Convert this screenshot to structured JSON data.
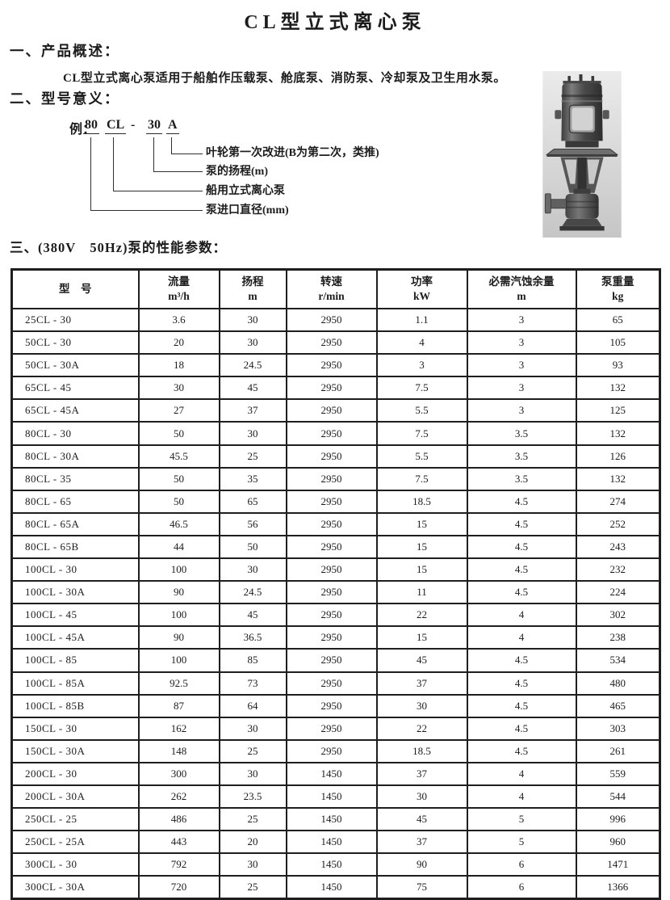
{
  "doc": {
    "title": "CL型立式离心泵",
    "section1": {
      "heading": "一、产品概述：",
      "body": "CL型立式离心泵适用于船舶作压载泵、舱底泵、消防泵、冷却泵及卫生用水泵。"
    },
    "section2": {
      "heading": "二、型号意义："
    },
    "section3": {
      "heading": "三、(380V　50Hz)泵的性能参数："
    }
  },
  "diagram": {
    "prefix": "例：",
    "tokens": [
      "80",
      "CL",
      "-",
      "30",
      "A"
    ],
    "labels": [
      "叶轮第一次改进(B为第二次，类推)",
      "泵的扬程(m)",
      "船用立式离心泵",
      "泵进口直径(mm)"
    ]
  },
  "pump_photo": {
    "alt": "CL型立式离心泵外形照片"
  },
  "table": {
    "columns": [
      {
        "key": "model",
        "name": "型　号",
        "unit": ""
      },
      {
        "key": "flow",
        "name": "流量",
        "unit": "m³/h"
      },
      {
        "key": "head",
        "name": "扬程",
        "unit": "m"
      },
      {
        "key": "speed",
        "name": "转速",
        "unit": "r/min"
      },
      {
        "key": "power",
        "name": "功率",
        "unit": "kW"
      },
      {
        "key": "npsh",
        "name": "必需汽蚀余量",
        "unit": "m"
      },
      {
        "key": "weight",
        "name": "泵重量",
        "unit": "kg"
      }
    ],
    "rows": [
      [
        "25CL - 30",
        "3.6",
        "30",
        "2950",
        "1.1",
        "3",
        "65"
      ],
      [
        "50CL - 30",
        "20",
        "30",
        "2950",
        "4",
        "3",
        "105"
      ],
      [
        "50CL - 30A",
        "18",
        "24.5",
        "2950",
        "3",
        "3",
        "93"
      ],
      [
        "65CL - 45",
        "30",
        "45",
        "2950",
        "7.5",
        "3",
        "132"
      ],
      [
        "65CL - 45A",
        "27",
        "37",
        "2950",
        "5.5",
        "3",
        "125"
      ],
      [
        "80CL - 30",
        "50",
        "30",
        "2950",
        "7.5",
        "3.5",
        "132"
      ],
      [
        "80CL - 30A",
        "45.5",
        "25",
        "2950",
        "5.5",
        "3.5",
        "126"
      ],
      [
        "80CL - 35",
        "50",
        "35",
        "2950",
        "7.5",
        "3.5",
        "132"
      ],
      [
        "80CL - 65",
        "50",
        "65",
        "2950",
        "18.5",
        "4.5",
        "274"
      ],
      [
        "80CL - 65A",
        "46.5",
        "56",
        "2950",
        "15",
        "4.5",
        "252"
      ],
      [
        "80CL - 65B",
        "44",
        "50",
        "2950",
        "15",
        "4.5",
        "243"
      ],
      [
        "100CL - 30",
        "100",
        "30",
        "2950",
        "15",
        "4.5",
        "232"
      ],
      [
        "100CL - 30A",
        "90",
        "24.5",
        "2950",
        "11",
        "4.5",
        "224"
      ],
      [
        "100CL - 45",
        "100",
        "45",
        "2950",
        "22",
        "4",
        "302"
      ],
      [
        "100CL - 45A",
        "90",
        "36.5",
        "2950",
        "15",
        "4",
        "238"
      ],
      [
        "100CL - 85",
        "100",
        "85",
        "2950",
        "45",
        "4.5",
        "534"
      ],
      [
        "100CL - 85A",
        "92.5",
        "73",
        "2950",
        "37",
        "4.5",
        "480"
      ],
      [
        "100CL - 85B",
        "87",
        "64",
        "2950",
        "30",
        "4.5",
        "465"
      ],
      [
        "150CL - 30",
        "162",
        "30",
        "2950",
        "22",
        "4.5",
        "303"
      ],
      [
        "150CL - 30A",
        "148",
        "25",
        "2950",
        "18.5",
        "4.5",
        "261"
      ],
      [
        "200CL - 30",
        "300",
        "30",
        "1450",
        "37",
        "4",
        "559"
      ],
      [
        "200CL - 30A",
        "262",
        "23.5",
        "1450",
        "30",
        "4",
        "544"
      ],
      [
        "250CL - 25",
        "486",
        "25",
        "1450",
        "45",
        "5",
        "996"
      ],
      [
        "250CL - 25A",
        "443",
        "20",
        "1450",
        "37",
        "5",
        "960"
      ],
      [
        "300CL - 30",
        "792",
        "30",
        "1450",
        "90",
        "6",
        "1471"
      ],
      [
        "300CL - 30A",
        "720",
        "25",
        "1450",
        "75",
        "6",
        "1366"
      ]
    ]
  }
}
